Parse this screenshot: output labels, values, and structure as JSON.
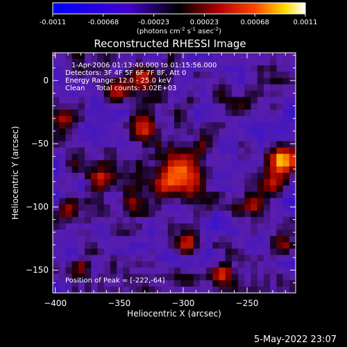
{
  "chart_data": {
    "type": "heatmap",
    "title": "Reconstructed RHESSI Image",
    "xlabel": "Heliocentric X (arcsec)",
    "ylabel": "Heliocentric Y (arcsec)",
    "xlim": [
      -402,
      -212
    ],
    "ylim": [
      -168,
      22
    ],
    "xticks": [
      -400,
      -350,
      -300,
      -250
    ],
    "yticks": [
      0,
      -50,
      -100,
      -150
    ],
    "colorbar": {
      "range": [
        -0.0011,
        0.0011
      ],
      "ticks": [
        "-0.0011",
        "-0.00068",
        "-0.00023",
        "0.00023",
        "0.00068",
        "0.0011"
      ],
      "unit_main": "(photons cm",
      "unit_sup1": "-2",
      "unit_s": " s",
      "unit_sup2": "-1",
      "unit_asec": " asec",
      "unit_sup3": "-2",
      "unit_close": ")"
    },
    "annotations": {
      "time": "1-Apr-2006 01:13:40.000 to 01:15:56.000",
      "detectors": "Detectors: 3F 4F 5F 6F 7F 8F, Att 0",
      "energy": "Energy Range: 12.0 - 25.0 keV",
      "method": "Clean     Total counts: 3.02E+03",
      "peak": "Position of Peak = [-222,-64]"
    },
    "peak": [
      -222,
      -64
    ],
    "sources": [
      {
        "x": -297,
        "y": -75,
        "amp": 0.00095,
        "sigma": 11
      },
      {
        "x": -314,
        "y": -80,
        "amp": 0.0008,
        "sigma": 8
      },
      {
        "x": -222,
        "y": -64,
        "amp": 0.00108,
        "sigma": 7
      },
      {
        "x": -230,
        "y": -80,
        "amp": 0.0007,
        "sigma": 7
      },
      {
        "x": -330,
        "y": -35,
        "amp": 0.0006,
        "sigma": 7
      },
      {
        "x": -350,
        "y": -5,
        "amp": 0.00068,
        "sigma": 8
      },
      {
        "x": -330,
        "y": 2,
        "amp": 0.00055,
        "sigma": 6
      },
      {
        "x": -365,
        "y": -78,
        "amp": 0.00065,
        "sigma": 7
      },
      {
        "x": -390,
        "y": -100,
        "amp": 0.0006,
        "sigma": 6
      },
      {
        "x": -340,
        "y": -98,
        "amp": 0.0005,
        "sigma": 6
      },
      {
        "x": -270,
        "y": -153,
        "amp": 0.0009,
        "sigma": 6
      },
      {
        "x": -298,
        "y": -130,
        "amp": 0.0005,
        "sigma": 6
      },
      {
        "x": -245,
        "y": -100,
        "amp": 0.0005,
        "sigma": 6
      },
      {
        "x": -395,
        "y": -30,
        "amp": 0.0004,
        "sigma": 5
      },
      {
        "x": -380,
        "y": -150,
        "amp": 0.00045,
        "sigma": 6
      },
      {
        "x": -300,
        "y": -160,
        "amp": 0.0004,
        "sigma": 6
      },
      {
        "x": -255,
        "y": -20,
        "amp": 0.0004,
        "sigma": 6
      },
      {
        "x": -222,
        "y": -130,
        "amp": 0.00045,
        "sigma": 6
      }
    ],
    "colormap": "purple-black-red-yellow-white, blue at negative end"
  },
  "footer": {
    "date": "5-May-2022 23:07"
  }
}
